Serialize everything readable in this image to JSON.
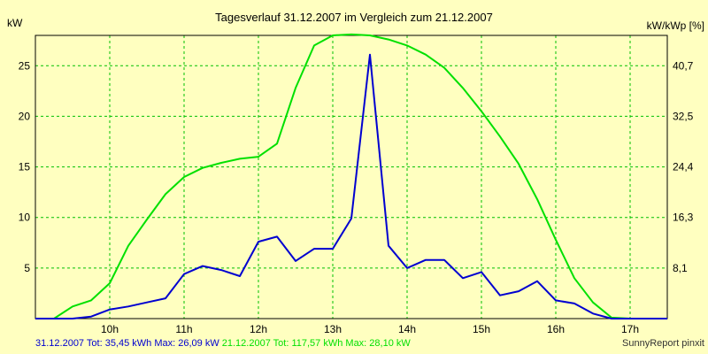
{
  "chart_data": {
    "type": "line",
    "title": "Tagesverlauf 31.12.2007 im Vergleich zum 21.12.2007",
    "ylabel_left": "kW",
    "ylabel_right": "kW/kWp [%]",
    "xlim": [
      9.0,
      17.5
    ],
    "ylim": [
      0,
      28
    ],
    "x_ticks": [
      {
        "x": 10,
        "label": "10h"
      },
      {
        "x": 11,
        "label": "11h"
      },
      {
        "x": 12,
        "label": "12h"
      },
      {
        "x": 13,
        "label": "13h"
      },
      {
        "x": 14,
        "label": "14h"
      },
      {
        "x": 15,
        "label": "15h"
      },
      {
        "x": 16,
        "label": "16h"
      },
      {
        "x": 17,
        "label": "17h"
      }
    ],
    "y_ticks_left": [
      {
        "y": 5,
        "label": "5"
      },
      {
        "y": 10,
        "label": "10"
      },
      {
        "y": 15,
        "label": "15"
      },
      {
        "y": 20,
        "label": "20"
      },
      {
        "y": 25,
        "label": "25"
      }
    ],
    "y_ticks_right": [
      {
        "y": 5,
        "label": "8,1"
      },
      {
        "y": 10,
        "label": "16,3"
      },
      {
        "y": 15,
        "label": "24,4"
      },
      {
        "y": 20,
        "label": "32,5"
      },
      {
        "y": 25,
        "label": "40,7"
      }
    ],
    "grid": true,
    "series": [
      {
        "color": "#00e000",
        "points": [
          [
            9.0,
            0
          ],
          [
            9.25,
            0
          ],
          [
            9.5,
            1.2
          ],
          [
            9.75,
            1.8
          ],
          [
            10.0,
            3.5
          ],
          [
            10.25,
            7.2
          ],
          [
            10.5,
            9.8
          ],
          [
            10.75,
            12.3
          ],
          [
            11.0,
            14.0
          ],
          [
            11.25,
            14.9
          ],
          [
            11.5,
            15.4
          ],
          [
            11.75,
            15.8
          ],
          [
            12.0,
            16.0
          ],
          [
            12.25,
            17.3
          ],
          [
            12.5,
            22.8
          ],
          [
            12.75,
            27.0
          ],
          [
            13.0,
            28.0
          ],
          [
            13.25,
            28.1
          ],
          [
            13.5,
            28.0
          ],
          [
            13.75,
            27.6
          ],
          [
            14.0,
            27.0
          ],
          [
            14.25,
            26.1
          ],
          [
            14.5,
            24.8
          ],
          [
            14.75,
            22.8
          ],
          [
            15.0,
            20.5
          ],
          [
            15.25,
            18.0
          ],
          [
            15.5,
            15.3
          ],
          [
            15.75,
            11.8
          ],
          [
            16.0,
            7.8
          ],
          [
            16.25,
            4.0
          ],
          [
            16.5,
            1.6
          ],
          [
            16.75,
            0.1
          ],
          [
            17.0,
            0
          ],
          [
            17.5,
            0
          ]
        ]
      },
      {
        "color": "#0000d0",
        "points": [
          [
            9.0,
            0
          ],
          [
            9.5,
            0
          ],
          [
            9.75,
            0.2
          ],
          [
            10.0,
            0.9
          ],
          [
            10.25,
            1.2
          ],
          [
            10.5,
            1.6
          ],
          [
            10.75,
            2.0
          ],
          [
            11.0,
            4.4
          ],
          [
            11.25,
            5.2
          ],
          [
            11.5,
            4.8
          ],
          [
            11.75,
            4.2
          ],
          [
            12.0,
            7.6
          ],
          [
            12.25,
            8.1
          ],
          [
            12.5,
            5.7
          ],
          [
            12.75,
            6.9
          ],
          [
            13.0,
            6.9
          ],
          [
            13.25,
            9.9
          ],
          [
            13.5,
            26.1
          ],
          [
            13.75,
            7.2
          ],
          [
            14.0,
            5.0
          ],
          [
            14.25,
            5.8
          ],
          [
            14.5,
            5.8
          ],
          [
            14.75,
            4.0
          ],
          [
            15.0,
            4.6
          ],
          [
            15.25,
            2.3
          ],
          [
            15.5,
            2.7
          ],
          [
            15.75,
            3.7
          ],
          [
            16.0,
            1.8
          ],
          [
            16.25,
            1.5
          ],
          [
            16.5,
            0.5
          ],
          [
            16.75,
            0
          ],
          [
            17.0,
            0
          ],
          [
            17.5,
            0
          ]
        ]
      }
    ]
  },
  "footer": {
    "series1_text": "31.12.2007 Tot: 35,45 kWh Max: 26,09 kW",
    "series1_color": "#0000d0",
    "series2_text": "21.12.2007 Tot: 117,57 kWh Max: 28,10 kW",
    "series2_color": "#00e000",
    "credit": "SunnyReport pinxit"
  }
}
